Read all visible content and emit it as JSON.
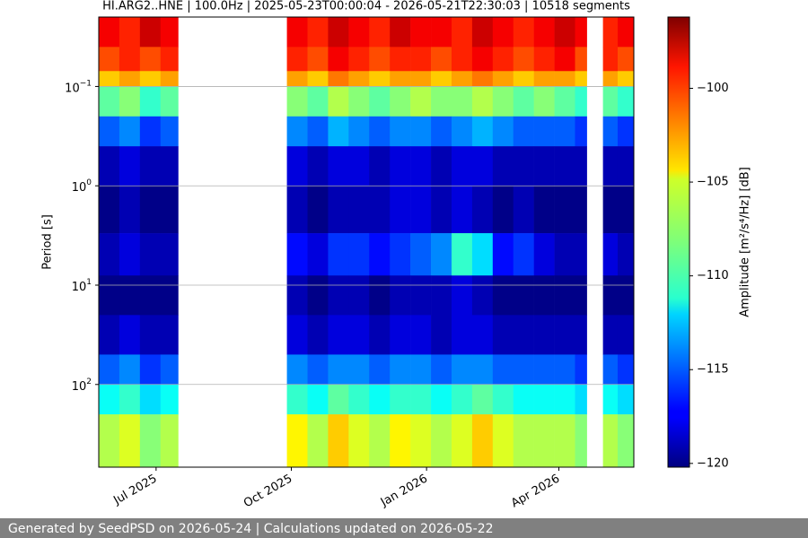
{
  "chart_data": {
    "type": "heatmap",
    "title": "HI.ARG2..HNE | 100.0Hz | 2025-05-23T00:00:04 - 2026-05-21T22:30:03 | 10518 segments",
    "ylabel": "Period [s]",
    "colorbar_label": "Amplitude [m²/s⁴/Hz] [dB]",
    "x": [
      "2025-05-23",
      "2025-06-06",
      "2025-06-20",
      "2025-07-04",
      "2025-07-16",
      "2025-09-28",
      "2025-10-12",
      "2025-10-26",
      "2025-11-09",
      "2025-11-23",
      "2025-12-07",
      "2025-12-21",
      "2026-01-04",
      "2026-01-18",
      "2026-02-01",
      "2026-02-15",
      "2026-03-01",
      "2026-03-15",
      "2026-03-29",
      "2026-04-12",
      "2026-04-20",
      "2026-05-01",
      "2026-05-11",
      "2026-05-22"
    ],
    "y": [
      0.02,
      0.04,
      0.07,
      0.1,
      0.2,
      0.4,
      1,
      3,
      8,
      20,
      50,
      100,
      200,
      680
    ],
    "z": [
      [
        -99,
        -100,
        -98,
        -99,
        null,
        -99,
        -100,
        -98,
        -99,
        -100,
        -98,
        -99,
        -99,
        -100,
        -98,
        -99,
        -100,
        -99,
        -98,
        -99,
        null,
        -100,
        -99
      ],
      [
        -101,
        -100,
        -101,
        -100,
        null,
        -100,
        -101,
        -99,
        -100,
        -101,
        -100,
        -100,
        -101,
        -100,
        -99,
        -100,
        -101,
        -100,
        -99,
        -101,
        null,
        -100,
        -101
      ],
      [
        -104,
        -103,
        -104,
        -103,
        null,
        -103,
        -104,
        -102,
        -103,
        -104,
        -103,
        -103,
        -104,
        -103,
        -102,
        -103,
        -104,
        -103,
        -103,
        -104,
        null,
        -103,
        -104
      ],
      [
        -109,
        -108,
        -110,
        -109,
        null,
        -108,
        -109,
        -107,
        -108,
        -109,
        -108,
        -107,
        -108,
        -108,
        -107,
        -108,
        -109,
        -108,
        -109,
        -110,
        null,
        -109,
        -110
      ],
      [
        -115,
        -114,
        -116,
        -115,
        null,
        -114,
        -115,
        -113,
        -114,
        -115,
        -114,
        -114,
        -115,
        -114,
        -113,
        -114,
        -115,
        -115,
        -115,
        -116,
        null,
        -115,
        -116
      ],
      [
        -119,
        -118,
        -119,
        -119,
        null,
        -118,
        -119,
        -118,
        -118,
        -119,
        -118,
        -118,
        -119,
        -118,
        -118,
        -119,
        -119,
        -119,
        -119,
        -119,
        null,
        -119,
        -119
      ],
      [
        -120,
        -119,
        -120,
        -120,
        null,
        -119,
        -120,
        -119,
        -119,
        -119,
        -118,
        -118,
        -119,
        -118,
        -119,
        -120,
        -119,
        -120,
        -120,
        -120,
        null,
        -120,
        -120
      ],
      [
        -119,
        -118,
        -119,
        -119,
        null,
        -117,
        -118,
        -116,
        -116,
        -117,
        -116,
        -115,
        -114,
        -110,
        -112,
        -117,
        -116,
        -118,
        -119,
        -119,
        null,
        -118,
        -119
      ],
      [
        -120,
        -120,
        -120,
        -120,
        null,
        -119,
        -120,
        -119,
        -119,
        -120,
        -119,
        -119,
        -119,
        -118,
        -119,
        -120,
        -120,
        -120,
        -120,
        -120,
        null,
        -120,
        -120
      ],
      [
        -119,
        -118,
        -119,
        -119,
        null,
        -118,
        -119,
        -118,
        -118,
        -119,
        -118,
        -118,
        -119,
        -118,
        -118,
        -119,
        -119,
        -119,
        -119,
        -119,
        null,
        -119,
        -119
      ],
      [
        -115,
        -114,
        -116,
        -115,
        null,
        -114,
        -115,
        -114,
        -114,
        -115,
        -114,
        -114,
        -115,
        -114,
        -114,
        -115,
        -115,
        -115,
        -115,
        -116,
        null,
        -115,
        -116
      ],
      [
        -111,
        -110,
        -112,
        -111,
        null,
        -110,
        -111,
        -109,
        -110,
        -111,
        -110,
        -110,
        -111,
        -110,
        -109,
        -110,
        -111,
        -111,
        -111,
        -112,
        null,
        -111,
        -112
      ],
      [
        -107,
        -106,
        -108,
        -107,
        null,
        -105,
        -107,
        -104,
        -106,
        -107,
        -105,
        -106,
        -107,
        -106,
        -104,
        -106,
        -107,
        -107,
        -107,
        -108,
        null,
        -107,
        -108
      ]
    ],
    "xlim": [
      "2025-05-23",
      "2026-05-22"
    ],
    "xticks": [
      {
        "value": "2025-07-01",
        "label": "Jul 2025"
      },
      {
        "value": "2025-10-01",
        "label": "Oct 2025"
      },
      {
        "value": "2026-01-01",
        "label": "Jan 2026"
      },
      {
        "value": "2026-04-01",
        "label": "Apr 2026"
      }
    ],
    "ylim": [
      680,
      0.02
    ],
    "yscale": "log",
    "yticks": [
      {
        "value": 0.1,
        "label": "10",
        "exponent": "−1"
      },
      {
        "value": 1,
        "label": "10",
        "exponent": "0"
      },
      {
        "value": 10,
        "label": "10",
        "exponent": "1"
      },
      {
        "value": 100,
        "label": "10",
        "exponent": "2"
      }
    ],
    "grid": true,
    "colormap": "jet",
    "clim": [
      -120.2,
      -96.2
    ],
    "cticks": [
      {
        "value": -120,
        "label": "−120"
      },
      {
        "value": -115,
        "label": "−115"
      },
      {
        "value": -110,
        "label": "−110"
      },
      {
        "value": -105,
        "label": "−105"
      },
      {
        "value": -100,
        "label": "−100"
      }
    ]
  },
  "footer": "Generated by SeedPSD on 2026-05-24 | Calculations updated on 2026-05-22"
}
